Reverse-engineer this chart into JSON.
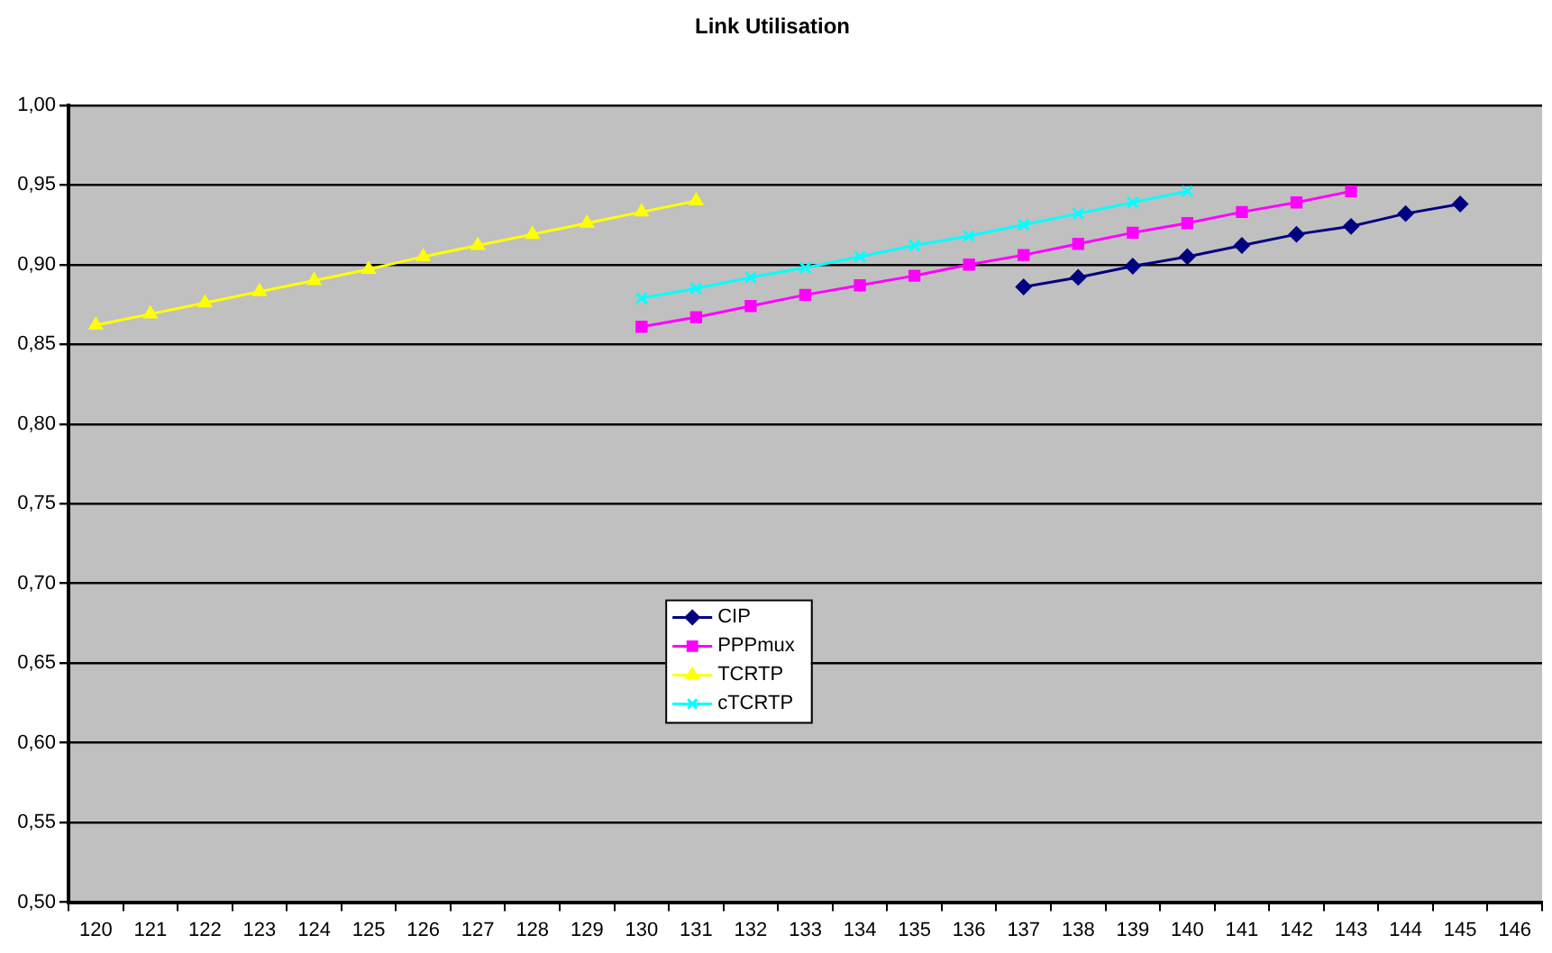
{
  "chart_data": {
    "type": "line",
    "title": "Link Utilisation",
    "categories": [
      "120",
      "121",
      "122",
      "123",
      "124",
      "125",
      "126",
      "127",
      "128",
      "129",
      "130",
      "131",
      "132",
      "133",
      "134",
      "135",
      "136",
      "137",
      "138",
      "139",
      "140",
      "141",
      "142",
      "143",
      "144",
      "145",
      "146"
    ],
    "series": [
      {
        "name": "CIP",
        "color": "#000080",
        "marker": "diamond",
        "values": [
          null,
          null,
          null,
          null,
          null,
          null,
          null,
          null,
          null,
          null,
          null,
          null,
          null,
          null,
          null,
          null,
          null,
          0.886,
          0.892,
          0.899,
          0.905,
          0.912,
          0.919,
          0.924,
          0.932,
          0.938,
          null
        ]
      },
      {
        "name": "PPPmux",
        "color": "#ff00ff",
        "marker": "square",
        "values": [
          null,
          null,
          null,
          null,
          null,
          null,
          null,
          null,
          null,
          null,
          0.861,
          0.867,
          0.874,
          0.881,
          0.887,
          0.893,
          0.9,
          0.906,
          0.913,
          0.92,
          0.926,
          0.933,
          0.939,
          0.946,
          null,
          null,
          null
        ]
      },
      {
        "name": "TCRTP",
        "color": "#ffff00",
        "marker": "triangle",
        "values": [
          0.862,
          0.869,
          0.876,
          0.883,
          0.89,
          0.897,
          0.905,
          0.912,
          0.919,
          0.926,
          0.933,
          0.94,
          null,
          null,
          null,
          null,
          null,
          null,
          null,
          null,
          null,
          null,
          null,
          null,
          null,
          null,
          null
        ]
      },
      {
        "name": "cTCRTP",
        "color": "#00ffff",
        "marker": "cross",
        "values": [
          null,
          null,
          null,
          null,
          null,
          null,
          null,
          null,
          null,
          null,
          0.879,
          0.885,
          0.892,
          0.898,
          0.905,
          0.912,
          0.918,
          0.925,
          0.932,
          0.939,
          0.946,
          null,
          null,
          null,
          null,
          null,
          null
        ]
      }
    ],
    "ylim": [
      0.5,
      1.0
    ],
    "yticks": [
      {
        "value": 0.5,
        "label": "0,50"
      },
      {
        "value": 0.55,
        "label": "0,55"
      },
      {
        "value": 0.6,
        "label": "0,60"
      },
      {
        "value": 0.65,
        "label": "0,65"
      },
      {
        "value": 0.7,
        "label": "0,70"
      },
      {
        "value": 0.75,
        "label": "0,75"
      },
      {
        "value": 0.8,
        "label": "0,80"
      },
      {
        "value": 0.85,
        "label": "0,85"
      },
      {
        "value": 0.9,
        "label": "0,90"
      },
      {
        "value": 0.95,
        "label": "0,95"
      },
      {
        "value": 1.0,
        "label": "1,00"
      }
    ],
    "grid": "y",
    "legend": "center",
    "line_style": "solid"
  }
}
